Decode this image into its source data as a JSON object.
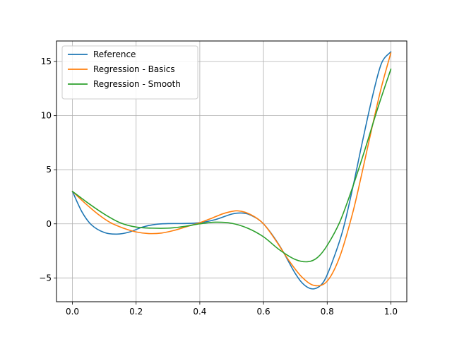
{
  "chart_data": {
    "type": "line",
    "title": "",
    "xlabel": "",
    "ylabel": "",
    "xlim": [
      -0.05,
      1.05
    ],
    "ylim": [
      -7.2,
      16.9
    ],
    "grid": true,
    "legend_position": "top-left",
    "x_ticks": [
      0.0,
      0.2,
      0.4,
      0.6,
      0.8,
      1.0
    ],
    "x_tick_labels": [
      "0.0",
      "0.2",
      "0.4",
      "0.6",
      "0.8",
      "1.0"
    ],
    "y_ticks": [
      -5,
      0,
      5,
      10,
      15
    ],
    "y_tick_labels": [
      "−5",
      "0",
      "5",
      "10",
      "15"
    ],
    "series": [
      {
        "name": "Reference",
        "color": "#1f77b4",
        "x": [
          0.0,
          0.03,
          0.06,
          0.1,
          0.14,
          0.18,
          0.22,
          0.26,
          0.3,
          0.35,
          0.4,
          0.45,
          0.5,
          0.53,
          0.56,
          0.6,
          0.65,
          0.7,
          0.73,
          0.76,
          0.79,
          0.82,
          0.85,
          0.88,
          0.91,
          0.94,
          0.97,
          1.0
        ],
        "y": [
          3.0,
          1.1,
          -0.1,
          -0.8,
          -0.95,
          -0.75,
          -0.3,
          -0.05,
          0.02,
          0.03,
          0.1,
          0.4,
          0.9,
          1.0,
          0.8,
          0.0,
          -2.0,
          -4.6,
          -5.7,
          -6.0,
          -5.3,
          -3.2,
          -0.5,
          3.3,
          7.5,
          11.5,
          14.8,
          15.9
        ]
      },
      {
        "name": "Regression - Basics",
        "color": "#ff7f0e",
        "x": [
          0.0,
          0.04,
          0.08,
          0.12,
          0.16,
          0.2,
          0.24,
          0.28,
          0.32,
          0.36,
          0.4,
          0.44,
          0.48,
          0.52,
          0.56,
          0.6,
          0.64,
          0.68,
          0.72,
          0.76,
          0.8,
          0.84,
          0.88,
          0.91,
          0.94,
          0.97,
          1.0
        ],
        "y": [
          3.0,
          1.9,
          0.9,
          0.1,
          -0.4,
          -0.75,
          -0.9,
          -0.85,
          -0.6,
          -0.25,
          0.1,
          0.55,
          1.0,
          1.2,
          0.85,
          0.0,
          -1.6,
          -3.4,
          -4.9,
          -5.7,
          -5.3,
          -3.0,
          1.0,
          4.8,
          8.8,
          12.6,
          15.8
        ]
      },
      {
        "name": "Regression - Smooth",
        "color": "#2ca02c",
        "x": [
          0.0,
          0.05,
          0.1,
          0.15,
          0.2,
          0.25,
          0.3,
          0.35,
          0.4,
          0.45,
          0.5,
          0.55,
          0.6,
          0.65,
          0.7,
          0.74,
          0.77,
          0.8,
          0.84,
          0.88,
          0.92,
          0.96,
          1.0
        ],
        "y": [
          3.0,
          1.9,
          0.9,
          0.1,
          -0.3,
          -0.4,
          -0.4,
          -0.25,
          0.0,
          0.15,
          0.05,
          -0.4,
          -1.2,
          -2.4,
          -3.3,
          -3.5,
          -3.1,
          -2.0,
          0.2,
          3.4,
          7.0,
          10.8,
          14.3
        ]
      }
    ]
  }
}
